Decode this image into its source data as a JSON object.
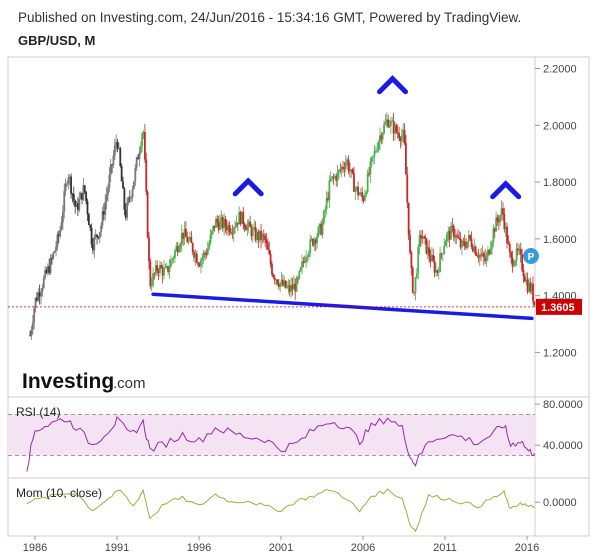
{
  "header": {
    "published": "Published on Investing.com, 24/Jun/2016 - 15:34:16 GMT, Powered by TradingView.",
    "symbol": "GBP/USD, M"
  },
  "logo": {
    "brand": "Investing",
    "suffix": ".com"
  },
  "price_badge": {
    "icon": "tradingview-p-icon",
    "label": "P"
  },
  "colors": {
    "up": "#4caf50",
    "down": "#c62828",
    "neutral": "#555555",
    "trendline": "#1a1ae6",
    "marker": "#1a1ae6",
    "price_line": "#cc0000",
    "rsi_line": "#9c27b0",
    "rsi_band": "#f3e3f3",
    "mom_line": "#a9a840"
  },
  "chart_data": [
    {
      "type": "candlestick",
      "panel": "price",
      "x_ticks": [
        "1986",
        "1991",
        "1996",
        "2001",
        "2006",
        "2011",
        "2016"
      ],
      "y_ticks": [
        "2.2000",
        "2.0000",
        "1.8000",
        "1.6000",
        "1.4000",
        "1.2000"
      ],
      "ylim": [
        1.05,
        2.23
      ],
      "current_price": 1.3605,
      "current_price_label": "1.3605",
      "series_close": [
        {
          "x": 1985.7,
          "y": 1.26
        },
        {
          "x": 1986.0,
          "y": 1.38
        },
        {
          "x": 1986.5,
          "y": 1.45
        },
        {
          "x": 1987.0,
          "y": 1.52
        },
        {
          "x": 1987.5,
          "y": 1.62
        },
        {
          "x": 1988.0,
          "y": 1.84
        },
        {
          "x": 1988.5,
          "y": 1.7
        },
        {
          "x": 1989.0,
          "y": 1.78
        },
        {
          "x": 1989.5,
          "y": 1.58
        },
        {
          "x": 1990.0,
          "y": 1.64
        },
        {
          "x": 1990.5,
          "y": 1.8
        },
        {
          "x": 1991.0,
          "y": 1.96
        },
        {
          "x": 1991.5,
          "y": 1.68
        },
        {
          "x": 1992.0,
          "y": 1.8
        },
        {
          "x": 1992.6,
          "y": 2.0
        },
        {
          "x": 1993.0,
          "y": 1.44
        },
        {
          "x": 1993.5,
          "y": 1.5
        },
        {
          "x": 1994.0,
          "y": 1.48
        },
        {
          "x": 1994.5,
          "y": 1.55
        },
        {
          "x": 1995.0,
          "y": 1.62
        },
        {
          "x": 1995.5,
          "y": 1.58
        },
        {
          "x": 1996.0,
          "y": 1.52
        },
        {
          "x": 1996.5,
          "y": 1.56
        },
        {
          "x": 1997.0,
          "y": 1.66
        },
        {
          "x": 1997.5,
          "y": 1.65
        },
        {
          "x": 1998.0,
          "y": 1.64
        },
        {
          "x": 1998.5,
          "y": 1.68
        },
        {
          "x": 1999.0,
          "y": 1.64
        },
        {
          "x": 1999.5,
          "y": 1.61
        },
        {
          "x": 2000.0,
          "y": 1.6
        },
        {
          "x": 2000.5,
          "y": 1.48
        },
        {
          "x": 2001.0,
          "y": 1.44
        },
        {
          "x": 2001.5,
          "y": 1.42
        },
        {
          "x": 2002.0,
          "y": 1.44
        },
        {
          "x": 2002.5,
          "y": 1.55
        },
        {
          "x": 2003.0,
          "y": 1.6
        },
        {
          "x": 2003.5,
          "y": 1.64
        },
        {
          "x": 2004.0,
          "y": 1.8
        },
        {
          "x": 2004.5,
          "y": 1.83
        },
        {
          "x": 2005.0,
          "y": 1.88
        },
        {
          "x": 2005.5,
          "y": 1.78
        },
        {
          "x": 2006.0,
          "y": 1.74
        },
        {
          "x": 2006.5,
          "y": 1.86
        },
        {
          "x": 2007.0,
          "y": 1.96
        },
        {
          "x": 2007.5,
          "y": 2.02
        },
        {
          "x": 2008.0,
          "y": 1.98
        },
        {
          "x": 2008.5,
          "y": 1.96
        },
        {
          "x": 2008.9,
          "y": 1.5
        },
        {
          "x": 2009.1,
          "y": 1.4
        },
        {
          "x": 2009.5,
          "y": 1.62
        },
        {
          "x": 2010.0,
          "y": 1.55
        },
        {
          "x": 2010.5,
          "y": 1.48
        },
        {
          "x": 2011.0,
          "y": 1.6
        },
        {
          "x": 2011.5,
          "y": 1.63
        },
        {
          "x": 2012.0,
          "y": 1.57
        },
        {
          "x": 2012.5,
          "y": 1.6
        },
        {
          "x": 2013.0,
          "y": 1.55
        },
        {
          "x": 2013.5,
          "y": 1.52
        },
        {
          "x": 2014.0,
          "y": 1.64
        },
        {
          "x": 2014.5,
          "y": 1.7
        },
        {
          "x": 2015.0,
          "y": 1.52
        },
        {
          "x": 2015.5,
          "y": 1.55
        },
        {
          "x": 2016.0,
          "y": 1.44
        },
        {
          "x": 2016.3,
          "y": 1.42
        },
        {
          "x": 2016.48,
          "y": 1.3605
        }
      ],
      "annotations": [
        {
          "kind": "caret",
          "x": 1999.0,
          "y": 1.79
        },
        {
          "kind": "caret",
          "x": 2007.8,
          "y": 2.15
        },
        {
          "kind": "caret",
          "x": 2014.7,
          "y": 1.78
        },
        {
          "kind": "trendline",
          "x1": 1993.2,
          "y1": 1.405,
          "x2": 2016.3,
          "y2": 1.32
        }
      ]
    },
    {
      "type": "line",
      "panel": "rsi",
      "title": "RSI (14)",
      "y_ticks": [
        "80.0000",
        "40.0000"
      ],
      "ylim": [
        10,
        85
      ],
      "band": [
        30,
        70
      ],
      "values": [
        {
          "x": 1985.5,
          "y": 18
        },
        {
          "x": 1986.0,
          "y": 55
        },
        {
          "x": 1986.8,
          "y": 60
        },
        {
          "x": 1987.8,
          "y": 66
        },
        {
          "x": 1988.5,
          "y": 58
        },
        {
          "x": 1989.5,
          "y": 40
        },
        {
          "x": 1990.5,
          "y": 55
        },
        {
          "x": 1991.0,
          "y": 64
        },
        {
          "x": 1991.8,
          "y": 50
        },
        {
          "x": 1992.6,
          "y": 62
        },
        {
          "x": 1993.0,
          "y": 36
        },
        {
          "x": 1994.0,
          "y": 42
        },
        {
          "x": 1995.0,
          "y": 50
        },
        {
          "x": 1996.0,
          "y": 44
        },
        {
          "x": 1997.0,
          "y": 57
        },
        {
          "x": 1998.0,
          "y": 52
        },
        {
          "x": 1999.0,
          "y": 48
        },
        {
          "x": 2000.0,
          "y": 46
        },
        {
          "x": 2001.0,
          "y": 36
        },
        {
          "x": 2002.0,
          "y": 42
        },
        {
          "x": 2003.0,
          "y": 55
        },
        {
          "x": 2004.0,
          "y": 64
        },
        {
          "x": 2005.0,
          "y": 58
        },
        {
          "x": 2005.8,
          "y": 44
        },
        {
          "x": 2006.5,
          "y": 58
        },
        {
          "x": 2007.5,
          "y": 67
        },
        {
          "x": 2008.4,
          "y": 56
        },
        {
          "x": 2008.9,
          "y": 28
        },
        {
          "x": 2009.2,
          "y": 22
        },
        {
          "x": 2010.0,
          "y": 44
        },
        {
          "x": 2011.0,
          "y": 50
        },
        {
          "x": 2012.0,
          "y": 48
        },
        {
          "x": 2013.0,
          "y": 42
        },
        {
          "x": 2014.0,
          "y": 52
        },
        {
          "x": 2014.6,
          "y": 60
        },
        {
          "x": 2015.0,
          "y": 40
        },
        {
          "x": 2015.6,
          "y": 45
        },
        {
          "x": 2016.1,
          "y": 34
        },
        {
          "x": 2016.48,
          "y": 32
        }
      ]
    },
    {
      "type": "line",
      "panel": "momentum",
      "title": "Mom (10, close)",
      "y_ticks": [
        "0.0000"
      ],
      "ylim": [
        -0.4,
        0.28
      ],
      "values": [
        {
          "x": 1985.5,
          "y": 0.0
        },
        {
          "x": 1986.5,
          "y": 0.05
        },
        {
          "x": 1987.5,
          "y": 0.1
        },
        {
          "x": 1988.5,
          "y": 0.12
        },
        {
          "x": 1989.5,
          "y": -0.1
        },
        {
          "x": 1990.5,
          "y": 0.05
        },
        {
          "x": 1991.2,
          "y": 0.15
        },
        {
          "x": 1992.0,
          "y": -0.05
        },
        {
          "x": 1992.6,
          "y": 0.15
        },
        {
          "x": 1993.0,
          "y": -0.2
        },
        {
          "x": 1994.0,
          "y": 0.0
        },
        {
          "x": 1995.0,
          "y": 0.05
        },
        {
          "x": 1996.0,
          "y": -0.05
        },
        {
          "x": 1997.0,
          "y": 0.1
        },
        {
          "x": 1998.0,
          "y": 0.0
        },
        {
          "x": 1999.0,
          "y": 0.02
        },
        {
          "x": 2000.0,
          "y": -0.05
        },
        {
          "x": 2001.0,
          "y": -0.1
        },
        {
          "x": 2002.0,
          "y": 0.02
        },
        {
          "x": 2003.0,
          "y": 0.08
        },
        {
          "x": 2004.0,
          "y": 0.16
        },
        {
          "x": 2005.0,
          "y": 0.05
        },
        {
          "x": 2005.8,
          "y": -0.12
        },
        {
          "x": 2006.5,
          "y": 0.08
        },
        {
          "x": 2007.5,
          "y": 0.15
        },
        {
          "x": 2008.4,
          "y": 0.05
        },
        {
          "x": 2008.9,
          "y": -0.3
        },
        {
          "x": 2009.2,
          "y": -0.35
        },
        {
          "x": 2010.0,
          "y": 0.08
        },
        {
          "x": 2011.0,
          "y": 0.05
        },
        {
          "x": 2012.0,
          "y": 0.0
        },
        {
          "x": 2013.0,
          "y": -0.05
        },
        {
          "x": 2014.0,
          "y": 0.06
        },
        {
          "x": 2014.6,
          "y": 0.12
        },
        {
          "x": 2015.0,
          "y": -0.1
        },
        {
          "x": 2015.6,
          "y": 0.0
        },
        {
          "x": 2016.1,
          "y": -0.06
        },
        {
          "x": 2016.48,
          "y": -0.06
        }
      ]
    }
  ]
}
